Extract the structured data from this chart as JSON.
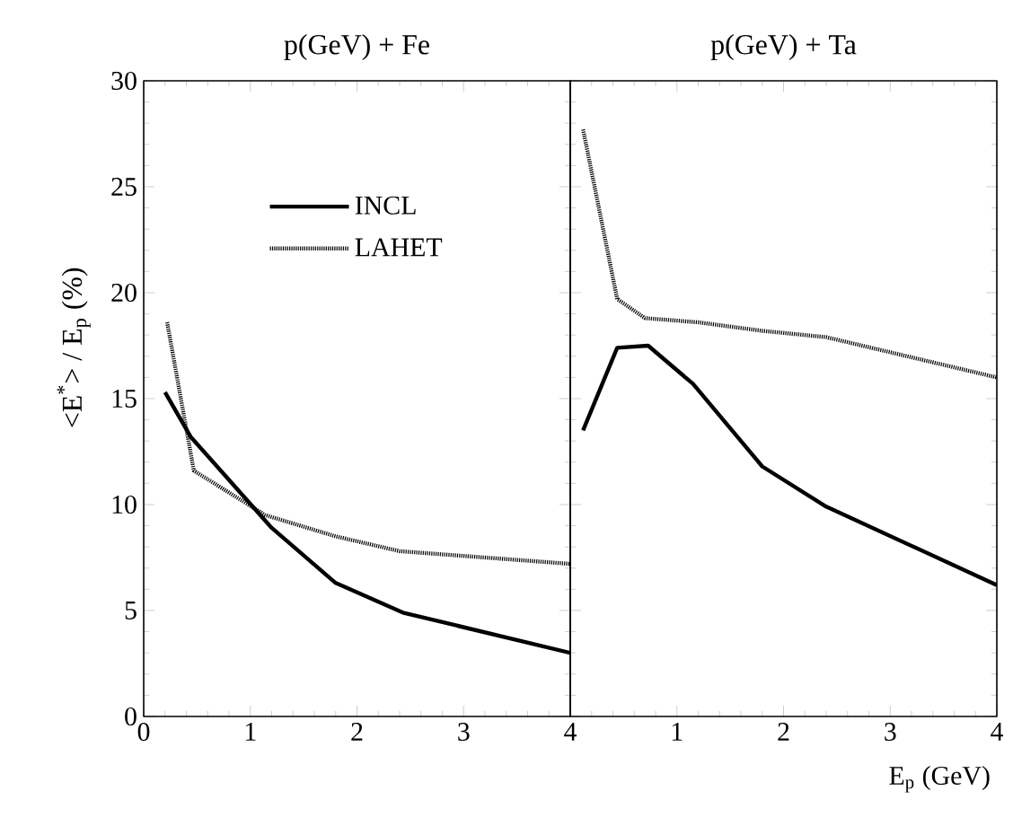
{
  "chart_data": [
    {
      "type": "line",
      "title": "p(GeV) + Fe",
      "ylabel": "<E$^{*}$> / E$_{p}$ (%)",
      "xlim": [
        0,
        4
      ],
      "ylim": [
        0,
        30
      ],
      "xticks": [
        0,
        1,
        2,
        3,
        4
      ],
      "yticks": [
        0,
        5,
        10,
        15,
        20,
        25,
        30
      ],
      "legend": "top",
      "series": [
        {
          "name": "INCL",
          "color": "#000000",
          "line_style": "solid",
          "x": [
            0.2,
            0.44,
            1.2,
            1.8,
            2.43,
            4
          ],
          "values": [
            15.3,
            13.2,
            8.9,
            6.3,
            4.9,
            3.0
          ]
        },
        {
          "name": "LAHET",
          "color": "#000000",
          "line_style": "dotted",
          "x": [
            0.22,
            0.47,
            1.14,
            1.8,
            2.4,
            4
          ],
          "values": [
            18.6,
            11.6,
            9.5,
            8.5,
            7.8,
            7.2
          ]
        }
      ]
    },
    {
      "type": "line",
      "title": "p(GeV) + Ta",
      "xlabel": "E$_{p}$ (GeV)",
      "xlim": [
        0,
        4
      ],
      "ylim": [
        0,
        30
      ],
      "xticks": [
        {
          "value": 0,
          "label": null
        },
        1,
        2,
        3,
        4
      ],
      "yticks": [
        0,
        5,
        10,
        15,
        20,
        25,
        30
      ],
      "tick_labels": "x",
      "series": [
        {
          "color": "#000000",
          "line_style": "solid",
          "x": [
            0.12,
            0.44,
            0.73,
            1.15,
            1.8,
            2.4,
            4
          ],
          "values": [
            13.5,
            17.4,
            17.5,
            15.7,
            11.8,
            9.9,
            6.2
          ]
        },
        {
          "color": "#000000",
          "line_style": "dotted",
          "x": [
            0.12,
            0.44,
            0.7,
            1.2,
            1.8,
            2.4,
            4
          ],
          "values": [
            27.7,
            19.7,
            18.8,
            18.6,
            18.2,
            17.9,
            16.0
          ]
        }
      ]
    }
  ]
}
